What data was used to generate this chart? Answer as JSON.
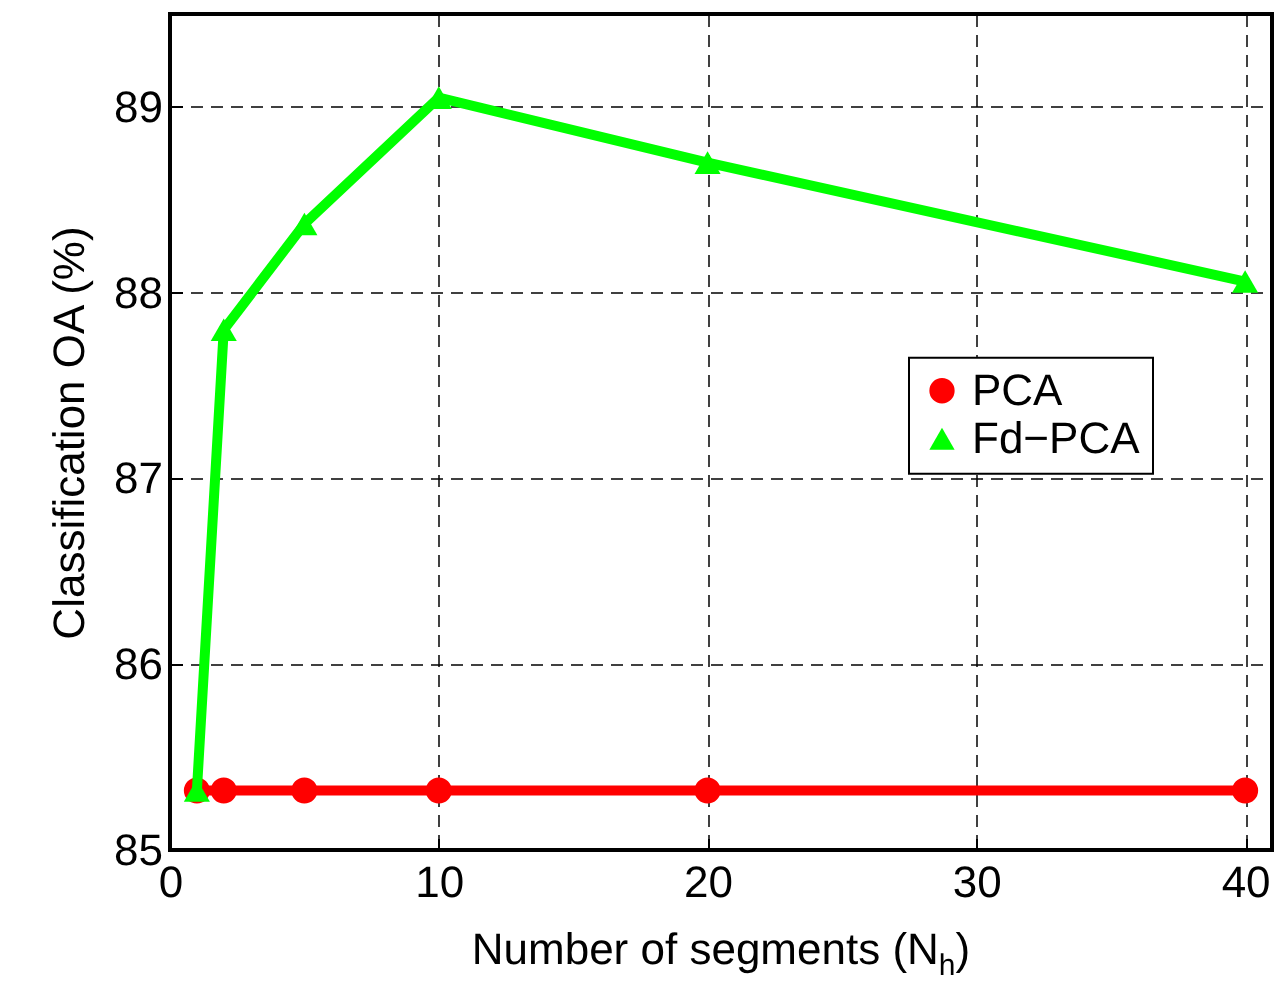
{
  "chart_data": {
    "type": "line",
    "xlabel": "Number of segments (N$_{h}$)",
    "ylabel": "Classification OA (%)",
    "x": [
      1,
      2,
      5,
      10,
      20,
      40
    ],
    "series": [
      {
        "name": "PCA",
        "color": "#ff0000",
        "marker": "circle",
        "values": [
          85.32,
          85.32,
          85.32,
          85.32,
          85.32,
          85.32
        ]
      },
      {
        "name": "Fd−PCA",
        "color": "#00ff00",
        "marker": "triangle",
        "values": [
          85.32,
          87.8,
          88.37,
          89.05,
          88.7,
          88.06
        ]
      }
    ],
    "xlim": [
      0,
      41
    ],
    "xticks": [
      0,
      10,
      20,
      30,
      40
    ],
    "ylim": [
      85,
      89.5
    ],
    "yticks": [
      85,
      86,
      87,
      88,
      89
    ],
    "grid": true,
    "legend": "right",
    "line_style": "solid"
  }
}
